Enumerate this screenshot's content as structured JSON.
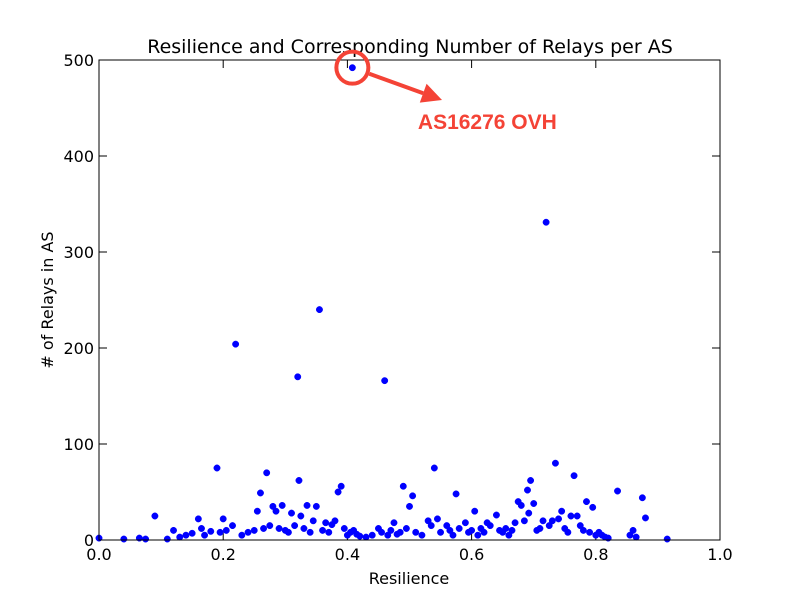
{
  "chart_data": {
    "type": "scatter",
    "title": "Resilience and Corresponding Number of Relays per AS",
    "xlabel": "Resilience",
    "ylabel": "# of Relays in AS",
    "xlim": [
      0.0,
      1.0
    ],
    "ylim": [
      0,
      500
    ],
    "xticks": [
      "0.0",
      "0.2",
      "0.4",
      "0.6",
      "0.8",
      "1.0"
    ],
    "yticks": [
      "0",
      "100",
      "200",
      "300",
      "400",
      "500"
    ],
    "grid": false,
    "legend": "none",
    "point_color": "#0000ff",
    "annotation": {
      "text": "AS16276 OVH",
      "color": "#f44336",
      "target": [
        0.408,
        492
      ],
      "text_at": [
        0.52,
        430
      ]
    },
    "points": [
      [
        0.0,
        2
      ],
      [
        0.04,
        1
      ],
      [
        0.065,
        2
      ],
      [
        0.075,
        1
      ],
      [
        0.09,
        25
      ],
      [
        0.11,
        1
      ],
      [
        0.12,
        10
      ],
      [
        0.13,
        3
      ],
      [
        0.14,
        5
      ],
      [
        0.15,
        7
      ],
      [
        0.16,
        22
      ],
      [
        0.165,
        12
      ],
      [
        0.17,
        5
      ],
      [
        0.18,
        9
      ],
      [
        0.19,
        75
      ],
      [
        0.195,
        8
      ],
      [
        0.2,
        22
      ],
      [
        0.205,
        10
      ],
      [
        0.215,
        15
      ],
      [
        0.22,
        204
      ],
      [
        0.23,
        5
      ],
      [
        0.24,
        8
      ],
      [
        0.25,
        10
      ],
      [
        0.255,
        30
      ],
      [
        0.26,
        49
      ],
      [
        0.265,
        12
      ],
      [
        0.27,
        70
      ],
      [
        0.275,
        15
      ],
      [
        0.28,
        35
      ],
      [
        0.285,
        30
      ],
      [
        0.29,
        12
      ],
      [
        0.295,
        36
      ],
      [
        0.3,
        10
      ],
      [
        0.305,
        8
      ],
      [
        0.31,
        28
      ],
      [
        0.315,
        15
      ],
      [
        0.32,
        170
      ],
      [
        0.322,
        62
      ],
      [
        0.325,
        25
      ],
      [
        0.33,
        12
      ],
      [
        0.335,
        36
      ],
      [
        0.34,
        8
      ],
      [
        0.345,
        20
      ],
      [
        0.35,
        35
      ],
      [
        0.355,
        240
      ],
      [
        0.36,
        10
      ],
      [
        0.365,
        18
      ],
      [
        0.37,
        8
      ],
      [
        0.375,
        16
      ],
      [
        0.38,
        20
      ],
      [
        0.385,
        50
      ],
      [
        0.39,
        56
      ],
      [
        0.395,
        12
      ],
      [
        0.4,
        5
      ],
      [
        0.405,
        8
      ],
      [
        0.408,
        492
      ],
      [
        0.41,
        10
      ],
      [
        0.415,
        6
      ],
      [
        0.42,
        4
      ],
      [
        0.43,
        3
      ],
      [
        0.44,
        5
      ],
      [
        0.45,
        12
      ],
      [
        0.455,
        8
      ],
      [
        0.46,
        166
      ],
      [
        0.465,
        5
      ],
      [
        0.47,
        10
      ],
      [
        0.475,
        18
      ],
      [
        0.48,
        6
      ],
      [
        0.485,
        8
      ],
      [
        0.49,
        56
      ],
      [
        0.495,
        12
      ],
      [
        0.5,
        35
      ],
      [
        0.505,
        46
      ],
      [
        0.51,
        8
      ],
      [
        0.52,
        5
      ],
      [
        0.53,
        20
      ],
      [
        0.535,
        15
      ],
      [
        0.54,
        75
      ],
      [
        0.545,
        22
      ],
      [
        0.55,
        8
      ],
      [
        0.56,
        15
      ],
      [
        0.565,
        10
      ],
      [
        0.57,
        5
      ],
      [
        0.575,
        48
      ],
      [
        0.58,
        12
      ],
      [
        0.59,
        18
      ],
      [
        0.595,
        8
      ],
      [
        0.6,
        10
      ],
      [
        0.605,
        30
      ],
      [
        0.61,
        5
      ],
      [
        0.615,
        12
      ],
      [
        0.62,
        8
      ],
      [
        0.625,
        18
      ],
      [
        0.63,
        15
      ],
      [
        0.64,
        26
      ],
      [
        0.645,
        10
      ],
      [
        0.65,
        8
      ],
      [
        0.655,
        12
      ],
      [
        0.66,
        5
      ],
      [
        0.665,
        10
      ],
      [
        0.67,
        18
      ],
      [
        0.675,
        40
      ],
      [
        0.68,
        36
      ],
      [
        0.685,
        20
      ],
      [
        0.69,
        52
      ],
      [
        0.692,
        28
      ],
      [
        0.695,
        62
      ],
      [
        0.7,
        38
      ],
      [
        0.705,
        10
      ],
      [
        0.71,
        12
      ],
      [
        0.715,
        20
      ],
      [
        0.72,
        331
      ],
      [
        0.725,
        15
      ],
      [
        0.73,
        20
      ],
      [
        0.735,
        80
      ],
      [
        0.74,
        22
      ],
      [
        0.745,
        30
      ],
      [
        0.75,
        12
      ],
      [
        0.755,
        8
      ],
      [
        0.76,
        25
      ],
      [
        0.765,
        67
      ],
      [
        0.77,
        25
      ],
      [
        0.775,
        15
      ],
      [
        0.78,
        10
      ],
      [
        0.785,
        40
      ],
      [
        0.79,
        8
      ],
      [
        0.795,
        34
      ],
      [
        0.8,
        5
      ],
      [
        0.805,
        8
      ],
      [
        0.81,
        5
      ],
      [
        0.815,
        3
      ],
      [
        0.82,
        2
      ],
      [
        0.835,
        51
      ],
      [
        0.855,
        5
      ],
      [
        0.86,
        10
      ],
      [
        0.865,
        3
      ],
      [
        0.875,
        44
      ],
      [
        0.88,
        23
      ],
      [
        0.915,
        1
      ]
    ]
  }
}
